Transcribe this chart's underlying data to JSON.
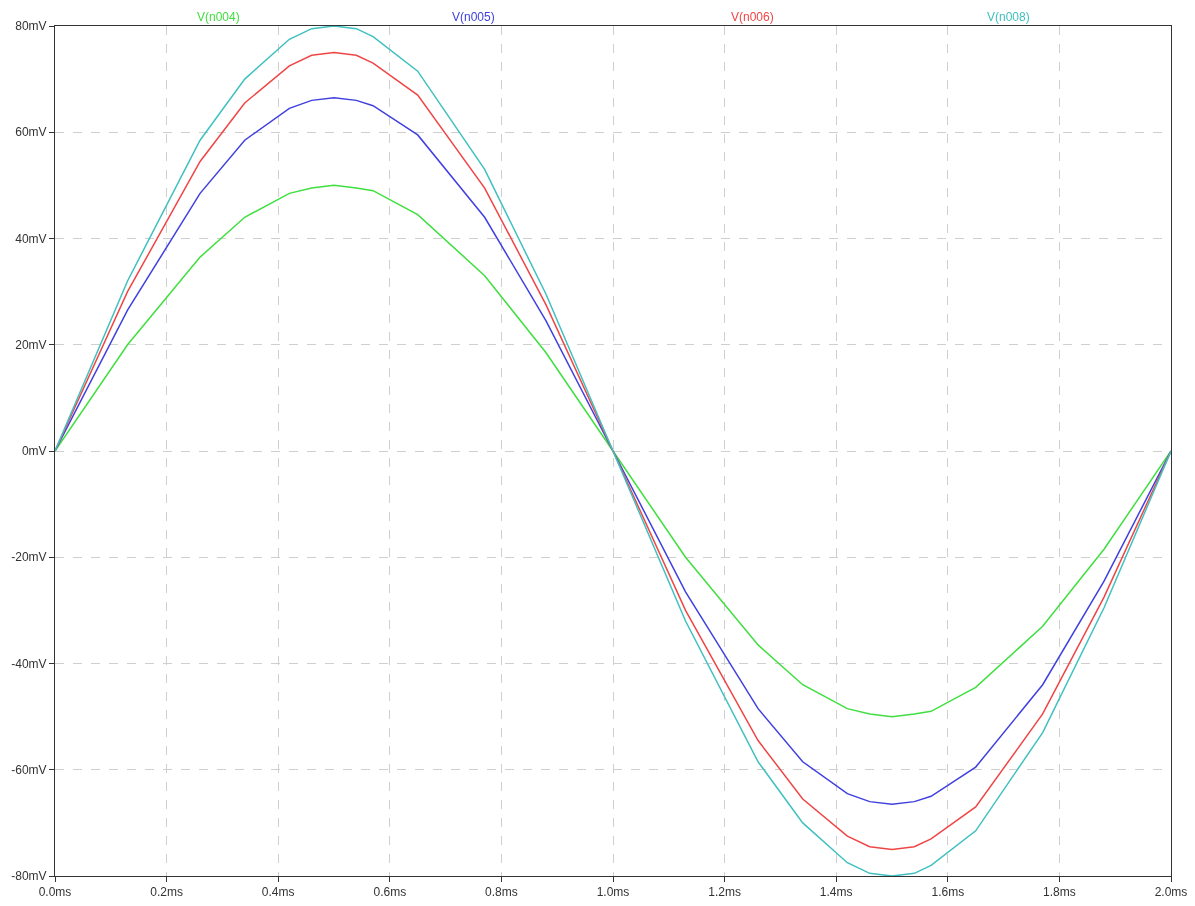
{
  "chart_data": {
    "type": "line",
    "x": [
      0,
      0.13,
      0.26,
      0.34,
      0.42,
      0.46,
      0.5,
      0.54,
      0.57,
      0.65,
      0.77,
      0.88,
      1.0,
      1.13,
      1.26,
      1.34,
      1.42,
      1.46,
      1.5,
      1.54,
      1.57,
      1.65,
      1.77,
      1.88,
      2.0
    ],
    "series": [
      {
        "name": "V(n004)",
        "color": "#3fdf3f",
        "values": [
          0,
          20,
          36.5,
          44,
          48.5,
          49.5,
          50,
          49.5,
          49,
          44.5,
          33,
          18.5,
          0,
          -20,
          -36.5,
          -44,
          -48.5,
          -49.5,
          -50,
          -49.5,
          -49,
          -44.5,
          -33,
          -18.5,
          0
        ]
      },
      {
        "name": "V(n005)",
        "color": "#4040e0",
        "values": [
          0,
          26.5,
          48.5,
          58.5,
          64.5,
          66,
          66.5,
          66,
          65,
          59.5,
          44,
          24.5,
          0,
          -26.5,
          -48.5,
          -58.5,
          -64.5,
          -66,
          -66.5,
          -66,
          -65,
          -59.5,
          -44,
          -24.5,
          0
        ]
      },
      {
        "name": "V(n006)",
        "color": "#f04545",
        "values": [
          0,
          30,
          54.5,
          65.5,
          72.5,
          74.5,
          75,
          74.5,
          73,
          67,
          49.5,
          27.5,
          0,
          -30,
          -54.5,
          -65.5,
          -72.5,
          -74.5,
          -75,
          -74.5,
          -73,
          -67,
          -49.5,
          -27.5,
          0
        ]
      },
      {
        "name": "V(n008)",
        "color": "#40c0c0",
        "values": [
          0,
          32,
          58.5,
          70,
          77.5,
          79.5,
          80,
          79.5,
          78,
          71.5,
          53,
          29.5,
          0,
          -32,
          -58.5,
          -70,
          -77.5,
          -79.5,
          -80,
          -79.5,
          -78,
          -71.5,
          -53,
          -29.5,
          0
        ]
      }
    ],
    "xlim": [
      0,
      2
    ],
    "xticks": [
      {
        "value": 0,
        "label": "0.0ms"
      },
      {
        "value": 0.2,
        "label": "0.2ms"
      },
      {
        "value": 0.4,
        "label": "0.4ms"
      },
      {
        "value": 0.6,
        "label": "0.6ms"
      },
      {
        "value": 0.8,
        "label": "0.8ms"
      },
      {
        "value": 1,
        "label": "1.0ms"
      },
      {
        "value": 1.2,
        "label": "1.2ms"
      },
      {
        "value": 1.4,
        "label": "1.4ms"
      },
      {
        "value": 1.6,
        "label": "1.6ms"
      },
      {
        "value": 1.8,
        "label": "1.8ms"
      },
      {
        "value": 2,
        "label": "2.0ms"
      }
    ],
    "ylim": [
      -80,
      80
    ],
    "yticks": [
      {
        "value": -80,
        "label": "-80mV"
      },
      {
        "value": -60,
        "label": "-60mV"
      },
      {
        "value": -40,
        "label": "-40mV"
      },
      {
        "value": -20,
        "label": "-20mV"
      },
      {
        "value": 0,
        "label": "0mV"
      },
      {
        "value": 20,
        "label": "20mV"
      },
      {
        "value": 40,
        "label": "40mV"
      },
      {
        "value": 60,
        "label": "60mV"
      },
      {
        "value": 80,
        "label": "80mV"
      }
    ],
    "grid": true,
    "legend": "top",
    "marker": "none",
    "line_style": "solid"
  }
}
